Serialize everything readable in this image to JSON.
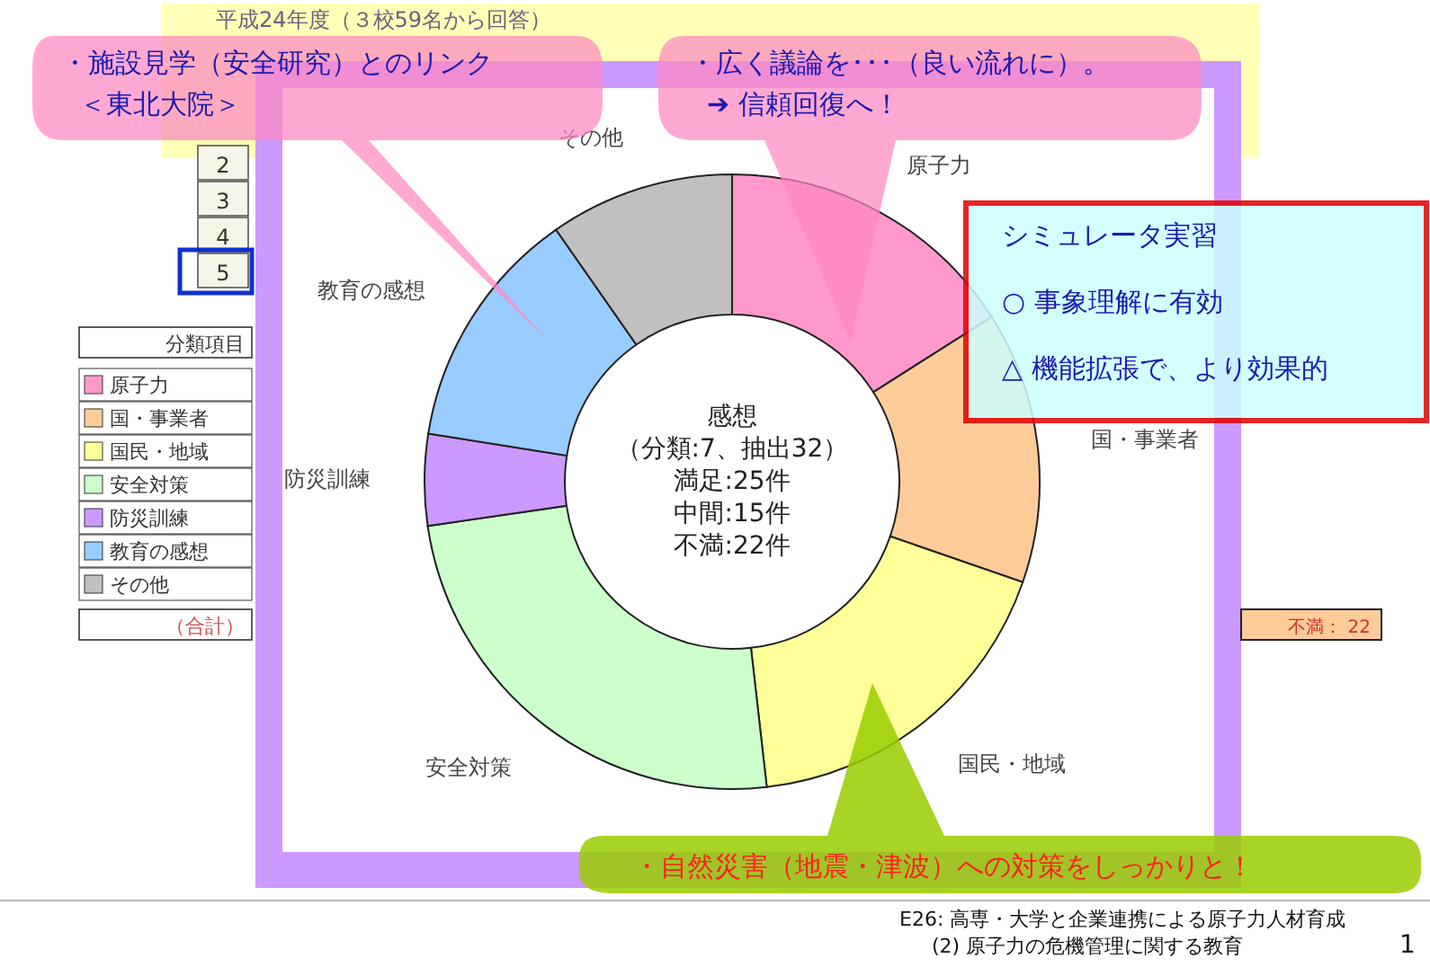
{
  "chart_data": {
    "type": "donut",
    "title": "感想",
    "subtitle": "（分類:7、抽出32）",
    "categories": [
      "原子力",
      "国・事業者",
      "国民・地域",
      "安全対策",
      "防災訓練",
      "教育の感想",
      "その他"
    ],
    "values": [
      16.0,
      14.3,
      17.9,
      24.5,
      4.8,
      12.8,
      9.7
    ],
    "colors": [
      "#ff99cc",
      "#ffcc99",
      "#ffff99",
      "#ccffcc",
      "#cc99ff",
      "#99ccff",
      "#c0c0c0"
    ],
    "legend": "left",
    "legend_title": "分類項目",
    "annotations": [
      "満足:25件",
      "中間:15件",
      "不満:22件",
      "・施設見学（安全研究）とのリンク",
      "＜東北大院＞",
      "・広く議論を･･･（良い流れに）。",
      "➔ 信頼回復へ！",
      "シミュレータ実習",
      "○ 事象理解に有効",
      "△ 機能拡張で、より効果的",
      "・自然災害（地震・津波）への対策をしっかりと！",
      "平成24年度（３校59名から回答）",
      "2",
      "3",
      "4",
      "5",
      "（合計）",
      "不満： 22",
      "E26: 高専・大学と企業連携による原子力人材育成",
      "(2) 原子力の危機管理に関する教育",
      "1"
    ]
  }
}
